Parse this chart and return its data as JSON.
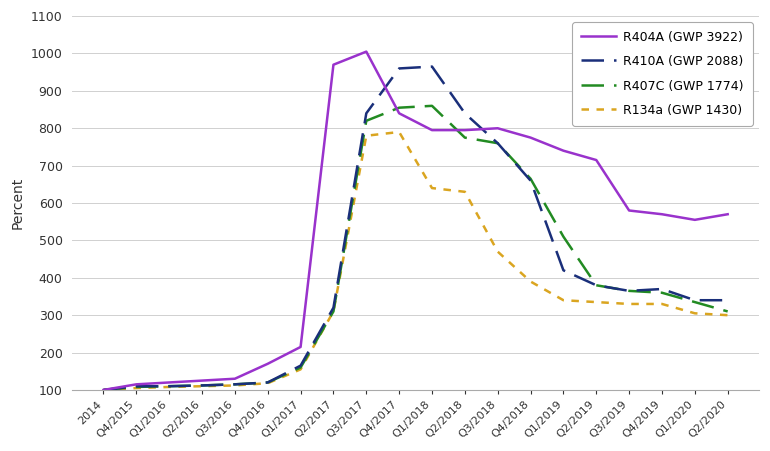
{
  "x_labels": [
    "2014",
    "Q4/2015",
    "Q1/2016",
    "Q2/2016",
    "Q3/2016",
    "Q4/2016",
    "Q1/2017",
    "Q2/2017",
    "Q3/2017",
    "Q4/2017",
    "Q1/2018",
    "Q2/2018",
    "Q3/2018",
    "Q4/2018",
    "Q1/2019",
    "Q2/2019",
    "Q3/2019",
    "Q4/2019",
    "Q1/2020",
    "Q2/2020"
  ],
  "R404A": [
    100,
    115,
    120,
    125,
    130,
    170,
    215,
    970,
    1005,
    840,
    795,
    795,
    800,
    775,
    740,
    715,
    580,
    570,
    555,
    570
  ],
  "R410A": [
    100,
    110,
    110,
    112,
    115,
    120,
    165,
    320,
    840,
    960,
    965,
    840,
    760,
    660,
    420,
    380,
    365,
    370,
    340,
    340
  ],
  "R407C": [
    100,
    108,
    110,
    112,
    115,
    120,
    160,
    310,
    820,
    855,
    860,
    775,
    760,
    665,
    510,
    380,
    365,
    360,
    335,
    310
  ],
  "R134a": [
    100,
    105,
    108,
    110,
    112,
    118,
    155,
    310,
    780,
    790,
    640,
    630,
    470,
    390,
    340,
    335,
    330,
    330,
    305,
    300
  ],
  "R404A_color": "#9932CC",
  "R410A_color": "#1a2f7a",
  "R407C_color": "#228B22",
  "R134a_color": "#DAA520",
  "ylabel": "Percent",
  "ylim_min": 100,
  "ylim_max": 1100,
  "yticks": [
    100,
    200,
    300,
    400,
    500,
    600,
    700,
    800,
    900,
    1000,
    1100
  ],
  "legend_labels": [
    "R404A (GWP 3922)",
    "R410A (GWP 2088)",
    "R407C (GWP 1774)",
    "R134a (GWP 1430)"
  ],
  "background_color": "#ffffff",
  "grid_color": "#d0d0d0"
}
